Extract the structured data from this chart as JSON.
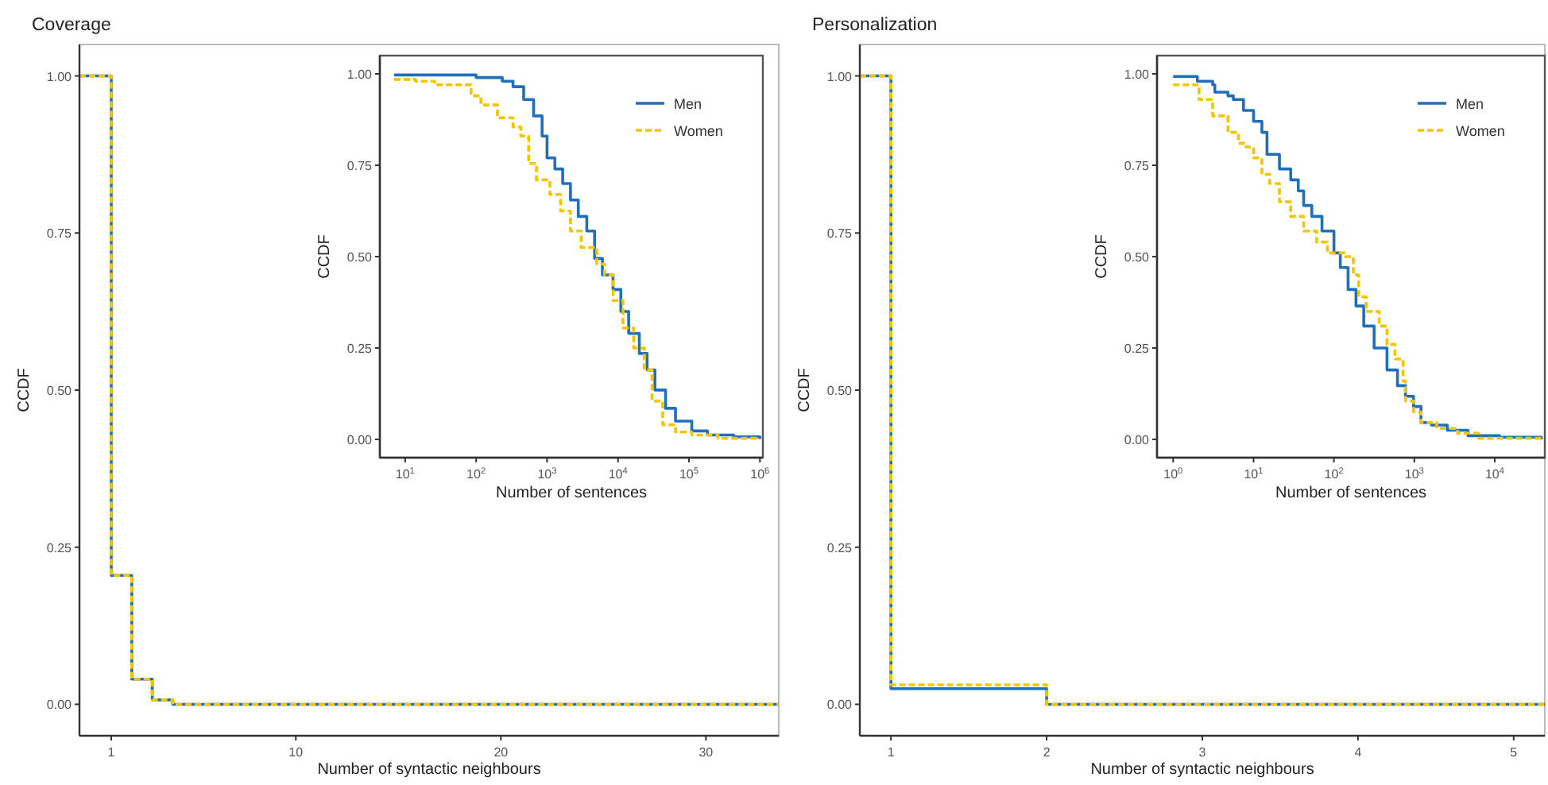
{
  "chart_data": [
    {
      "type": "step",
      "title": "Coverage",
      "xlabel": "Number of syntactic neighbours",
      "ylabel": "CCDF",
      "xlim": [
        -0.55,
        33.55
      ],
      "ylim": [
        -0.05,
        1.05
      ],
      "xticks": [
        1,
        10,
        20,
        30
      ],
      "yticks": [
        {
          "value": 0,
          "label": "0.00"
        },
        {
          "value": 0.25,
          "label": "0.25"
        },
        {
          "value": 0.5,
          "label": "0.50"
        },
        {
          "value": 0.75,
          "label": "0.75"
        },
        {
          "value": 1,
          "label": "1.00"
        }
      ],
      "series": [
        {
          "color": "#1f6fbf",
          "line_style": "solid",
          "x": [
            -0.55,
            1,
            2,
            3,
            4,
            33.55
          ],
          "values": [
            1,
            0.205,
            0.04,
            0.007,
            0,
            0
          ]
        },
        {
          "color": "#f5c400",
          "line_style": "dashed",
          "x": [
            -0.55,
            1,
            2,
            3,
            4,
            33.55
          ],
          "values": [
            1,
            0.205,
            0.04,
            0.007,
            0,
            0
          ]
        }
      ]
    },
    {
      "type": "step",
      "xlabel": "Number of sentences",
      "ylabel": "CCDF",
      "log": "x",
      "legend": "top right",
      "xlim": [
        4.4,
        1100000
      ],
      "ylim": [
        -0.05,
        1.05
      ],
      "xticks": [
        {
          "value": 10,
          "label": "10$^{1}$"
        },
        {
          "value": 100,
          "label": "10$^{2}$"
        },
        {
          "value": 1000,
          "label": "10$^{3}$"
        },
        {
          "value": 10000,
          "label": "10$^{4}$"
        },
        {
          "value": 100000,
          "label": "10$^{5}$"
        },
        {
          "value": 1000000,
          "label": "10$^{6}$"
        }
      ],
      "yticks": [
        {
          "value": 0,
          "label": "0.00"
        },
        {
          "value": 0.25,
          "label": "0.25"
        },
        {
          "value": 0.5,
          "label": "0.50"
        },
        {
          "value": 0.75,
          "label": "0.75"
        },
        {
          "value": 1,
          "label": "1.00"
        }
      ],
      "series": [
        {
          "name": "Men",
          "color": "#1f6fbf",
          "line_style": "solid",
          "x": [
            7,
            100,
            234,
            331,
            468,
            646,
            851,
            1000,
            1288,
            1660,
            2138,
            2754,
            3631,
            4677,
            6026,
            8511,
            10960,
            14125,
            19953,
            25704,
            33113,
            46774,
            64565,
            109648,
            181970,
            426580,
            1000000
          ],
          "values": [
            0.997,
            0.99,
            0.98,
            0.965,
            0.93,
            0.885,
            0.83,
            0.77,
            0.74,
            0.7,
            0.655,
            0.61,
            0.57,
            0.495,
            0.45,
            0.41,
            0.35,
            0.29,
            0.235,
            0.19,
            0.135,
            0.085,
            0.05,
            0.023,
            0.012,
            0.007,
            0.001
          ]
        },
        {
          "name": "Women",
          "color": "#f5c400",
          "line_style": "dashed",
          "x": [
            7,
            14,
            26,
            71,
            85,
            117,
            200,
            331,
            427,
            550,
            708,
            1096,
            1549,
            2138,
            3020,
            5012,
            6457,
            8511,
            11749,
            16596,
            23442,
            30200,
            42658,
            64565,
            109648,
            257040,
            1000000
          ],
          "values": [
            0.985,
            0.98,
            0.97,
            0.97,
            0.94,
            0.915,
            0.88,
            0.855,
            0.83,
            0.755,
            0.71,
            0.67,
            0.625,
            0.57,
            0.525,
            0.48,
            0.45,
            0.38,
            0.305,
            0.25,
            0.19,
            0.105,
            0.04,
            0.02,
            0.012,
            0.003,
            0.003
          ]
        }
      ]
    },
    {
      "type": "step",
      "title": "Personalization",
      "xlabel": "Number of syntactic neighbours",
      "ylabel": "CCDF",
      "xlim": [
        0.8,
        5.2
      ],
      "ylim": [
        -0.05,
        1.05
      ],
      "xticks": [
        1,
        2,
        3,
        4,
        5
      ],
      "yticks": [
        {
          "value": 0,
          "label": "0.00"
        },
        {
          "value": 0.25,
          "label": "0.25"
        },
        {
          "value": 0.5,
          "label": "0.50"
        },
        {
          "value": 0.75,
          "label": "0.75"
        },
        {
          "value": 1,
          "label": "1.00"
        }
      ],
      "series": [
        {
          "color": "#1f6fbf",
          "line_style": "solid",
          "x": [
            0.8,
            1,
            2,
            5.2
          ],
          "values": [
            1,
            0.025,
            0,
            0
          ]
        },
        {
          "color": "#f5c400",
          "line_style": "dashed",
          "x": [
            0.8,
            1,
            2,
            5.2
          ],
          "values": [
            1,
            0.031,
            0,
            0
          ]
        }
      ]
    },
    {
      "type": "step",
      "xlabel": "Number of sentences",
      "ylabel": "CCDF",
      "log": "x",
      "legend": "top right",
      "xlim": [
        0.63,
        42000
      ],
      "ylim": [
        -0.05,
        1.05
      ],
      "xticks": [
        {
          "value": 1,
          "label": "10$^{0}$"
        },
        {
          "value": 10,
          "label": "10$^{1}$"
        },
        {
          "value": 100,
          "label": "10$^{2}$"
        },
        {
          "value": 1000,
          "label": "10$^{3}$"
        },
        {
          "value": 10000,
          "label": "10$^{4}$"
        }
      ],
      "yticks": [
        {
          "value": 0,
          "label": "0.00"
        },
        {
          "value": 0.25,
          "label": "0.25"
        },
        {
          "value": 0.5,
          "label": "0.50"
        },
        {
          "value": 0.75,
          "label": "0.75"
        },
        {
          "value": 1,
          "label": "1.00"
        }
      ],
      "series": [
        {
          "name": "Men",
          "color": "#1f6fbf",
          "line_style": "solid",
          "x": [
            1,
            2,
            3.1,
            3.3,
            4.8,
            5.6,
            7.5,
            10,
            12.7,
            14.7,
            21,
            29,
            36,
            42,
            53,
            71,
            100,
            120,
            150,
            188,
            235,
            316,
            457,
            617,
            776,
            977,
            1210,
            1630,
            2570,
            4650,
            11500,
            38000
          ],
          "values": [
            0.993,
            0.98,
            0.97,
            0.95,
            0.94,
            0.93,
            0.9,
            0.87,
            0.84,
            0.78,
            0.74,
            0.71,
            0.68,
            0.64,
            0.61,
            0.57,
            0.51,
            0.47,
            0.41,
            0.365,
            0.31,
            0.25,
            0.19,
            0.147,
            0.118,
            0.09,
            0.046,
            0.039,
            0.025,
            0.01,
            0.006,
            0
          ]
        },
        {
          "name": "Women",
          "color": "#f5c400",
          "line_style": "dashed",
          "x": [
            1,
            1.8,
            2.1,
            3.1,
            4.8,
            6.5,
            8.1,
            10,
            12.7,
            15.9,
            21,
            29,
            42,
            61,
            83,
            112,
            139,
            174,
            203,
            251,
            365,
            457,
            575,
            724,
            776,
            977,
            1210,
            1900,
            3450,
            6300,
            38000
          ],
          "values": [
            0.97,
            0.97,
            0.93,
            0.885,
            0.84,
            0.81,
            0.8,
            0.77,
            0.725,
            0.7,
            0.65,
            0.61,
            0.57,
            0.54,
            0.51,
            0.51,
            0.5,
            0.45,
            0.39,
            0.35,
            0.31,
            0.26,
            0.22,
            0.16,
            0.105,
            0.075,
            0.046,
            0.03,
            0.017,
            0.003,
            0
          ]
        }
      ]
    }
  ]
}
